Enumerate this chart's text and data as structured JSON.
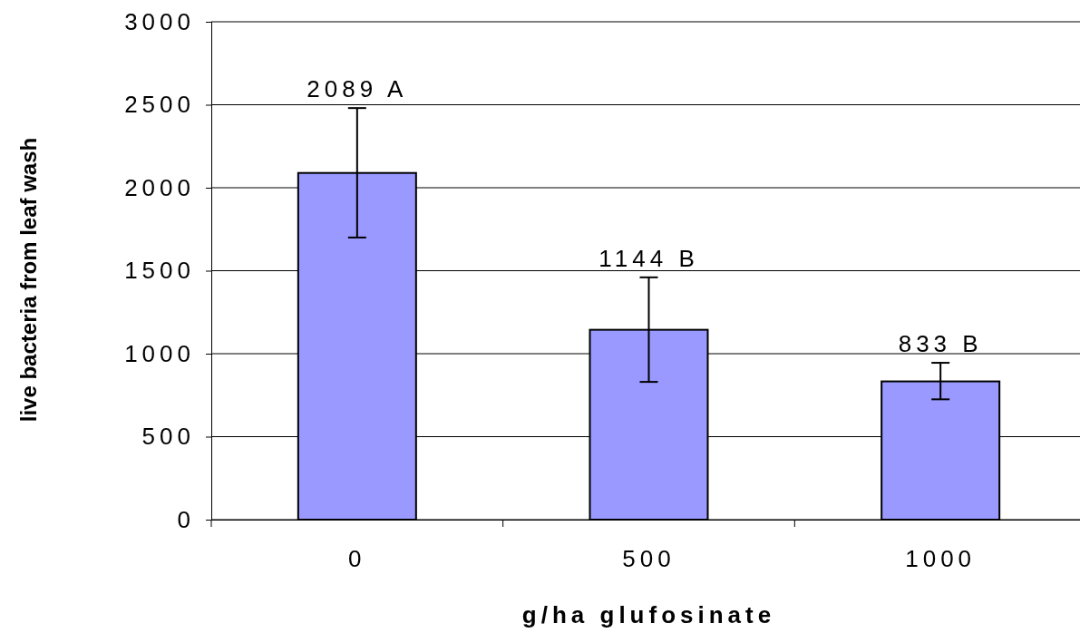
{
  "chart_data": {
    "type": "bar",
    "xlabel": "g/ha glufosinate",
    "ylabel": "live bacteria from leaf wash",
    "categories": [
      "0",
      "500",
      "1000"
    ],
    "values": [
      2089,
      1144,
      833
    ],
    "color": "#9999ff",
    "errors": [
      [
        1700,
        2480
      ],
      [
        830,
        1460
      ],
      [
        725,
        945
      ]
    ],
    "value_labels": [
      "2089 A",
      "1144 B",
      "833 B"
    ],
    "ylim": [
      0,
      3000
    ],
    "yticks": [
      0,
      500,
      1000,
      1500,
      2000,
      2500,
      3000
    ],
    "grid": "y"
  }
}
